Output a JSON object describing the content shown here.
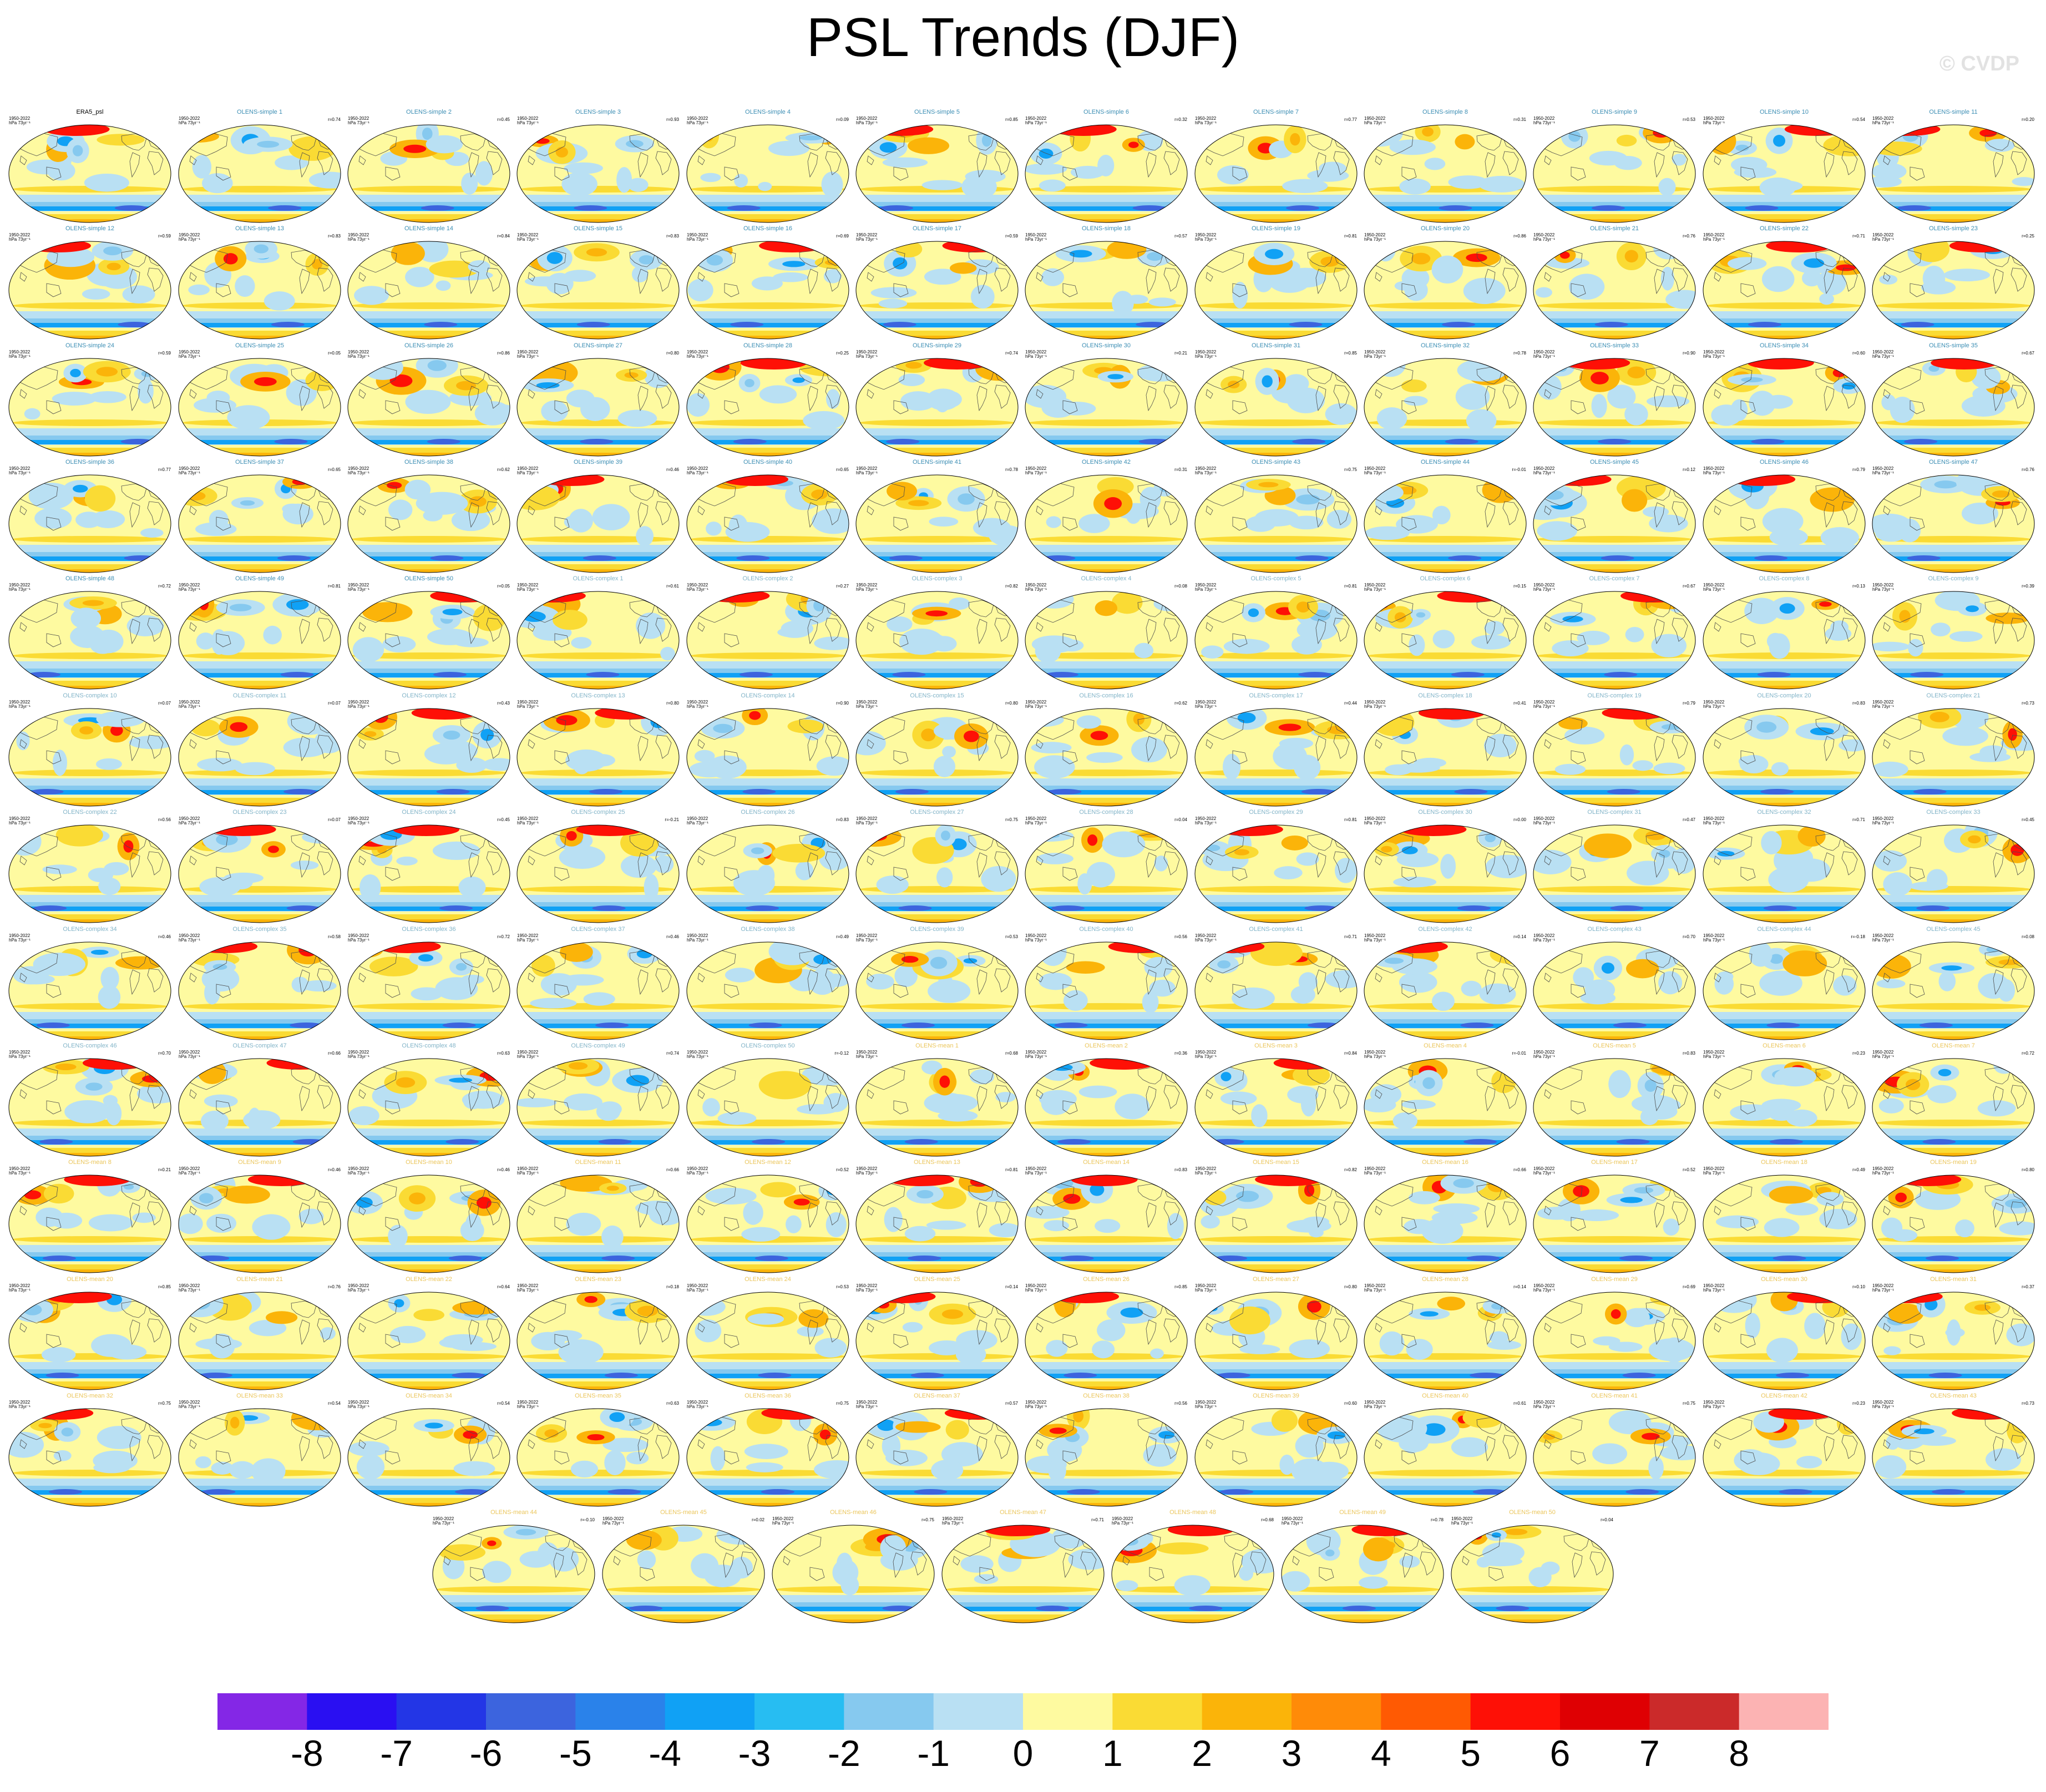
{
  "title": "PSL Trends (DJF)",
  "watermark": "© CVDP",
  "chart_data": {
    "type": "heatmap",
    "title": "PSL Trends (DJF)",
    "panel_years": "1950-2022",
    "panel_units": "hPa 73yr⁻¹",
    "colorbar": {
      "labels": [
        "-8",
        "-7",
        "-6",
        "-5",
        "-4",
        "-3",
        "-2",
        "-1",
        "0",
        "1",
        "2",
        "3",
        "4",
        "5",
        "6",
        "7",
        "8"
      ],
      "colors": [
        "#8427e6",
        "#2a0ff2",
        "#2336e6",
        "#3c64de",
        "#2a82ea",
        "#10a1f5",
        "#27bdf2",
        "#86c9ef",
        "#b9e0f3",
        "#fefaa0",
        "#fadb34",
        "#fbb409",
        "#ff8b08",
        "#ff5a03",
        "#fe1006",
        "#df0003",
        "#cb2a2a",
        "#fcb3b3"
      ]
    },
    "title_colors": {
      "obs": "#000000",
      "simple": "#3c8eb4",
      "complex": "#82b4c8",
      "mean": "#ebc65c"
    },
    "panels": [
      {
        "name": "ERA5_psl",
        "r": ""
      },
      {
        "name": "OLENS-simple 1",
        "r": "r=0.74"
      },
      {
        "name": "OLENS-simple 2",
        "r": "r=0.45"
      },
      {
        "name": "OLENS-simple 3",
        "r": "r=0.93"
      },
      {
        "name": "OLENS-simple 4",
        "r": "r=0.09"
      },
      {
        "name": "OLENS-simple 5",
        "r": "r=0.85"
      },
      {
        "name": "OLENS-simple 6",
        "r": "r=0.32"
      },
      {
        "name": "OLENS-simple 7",
        "r": "r=0.77"
      },
      {
        "name": "OLENS-simple 8",
        "r": "r=0.31"
      },
      {
        "name": "OLENS-simple 9",
        "r": "r=0.53"
      },
      {
        "name": "OLENS-simple 10",
        "r": "r=0.54"
      },
      {
        "name": "OLENS-simple 11",
        "r": "r=0.20"
      },
      {
        "name": "OLENS-simple 12",
        "r": "r=0.59"
      },
      {
        "name": "OLENS-simple 13",
        "r": "r=0.83"
      },
      {
        "name": "OLENS-simple 14",
        "r": "r=0.84"
      },
      {
        "name": "OLENS-simple 15",
        "r": "r=0.83"
      },
      {
        "name": "OLENS-simple 16",
        "r": "r=0.69"
      },
      {
        "name": "OLENS-simple 17",
        "r": "r=0.59"
      },
      {
        "name": "OLENS-simple 18",
        "r": "r=0.57"
      },
      {
        "name": "OLENS-simple 19",
        "r": "r=0.81"
      },
      {
        "name": "OLENS-simple 20",
        "r": "r=0.86"
      },
      {
        "name": "OLENS-simple 21",
        "r": "r=0.76"
      },
      {
        "name": "OLENS-simple 22",
        "r": "r=0.71"
      },
      {
        "name": "OLENS-simple 23",
        "r": "r=0.25"
      },
      {
        "name": "OLENS-simple 24",
        "r": "r=0.59"
      },
      {
        "name": "OLENS-simple 25",
        "r": "r=0.05"
      },
      {
        "name": "OLENS-simple 26",
        "r": "r=0.86"
      },
      {
        "name": "OLENS-simple 27",
        "r": "r=0.80"
      },
      {
        "name": "OLENS-simple 28",
        "r": "r=0.25"
      },
      {
        "name": "OLENS-simple 29",
        "r": "r=0.74"
      },
      {
        "name": "OLENS-simple 30",
        "r": "r=0.21"
      },
      {
        "name": "OLENS-simple 31",
        "r": "r=0.85"
      },
      {
        "name": "OLENS-simple 32",
        "r": "r=0.78"
      },
      {
        "name": "OLENS-simple 33",
        "r": "r=0.90"
      },
      {
        "name": "OLENS-simple 34",
        "r": "r=0.60"
      },
      {
        "name": "OLENS-simple 35",
        "r": "r=0.67"
      },
      {
        "name": "OLENS-simple 36",
        "r": "r=0.77"
      },
      {
        "name": "OLENS-simple 37",
        "r": "r=0.65"
      },
      {
        "name": "OLENS-simple 38",
        "r": "r=0.62"
      },
      {
        "name": "OLENS-simple 39",
        "r": "r=0.46"
      },
      {
        "name": "OLENS-simple 40",
        "r": "r=0.65"
      },
      {
        "name": "OLENS-simple 41",
        "r": "r=0.78"
      },
      {
        "name": "OLENS-simple 42",
        "r": "r=0.31"
      },
      {
        "name": "OLENS-simple 43",
        "r": "r=0.75"
      },
      {
        "name": "OLENS-simple 44",
        "r": "r=-0.01"
      },
      {
        "name": "OLENS-simple 45",
        "r": "r=0.12"
      },
      {
        "name": "OLENS-simple 46",
        "r": "r=0.79"
      },
      {
        "name": "OLENS-simple 47",
        "r": "r=0.76"
      },
      {
        "name": "OLENS-simple 48",
        "r": "r=0.72"
      },
      {
        "name": "OLENS-simple 49",
        "r": "r=0.81"
      },
      {
        "name": "OLENS-simple 50",
        "r": "r=0.05"
      },
      {
        "name": "OLENS-complex 1",
        "r": "r=0.61"
      },
      {
        "name": "OLENS-complex 2",
        "r": "r=0.27"
      },
      {
        "name": "OLENS-complex 3",
        "r": "r=0.82"
      },
      {
        "name": "OLENS-complex 4",
        "r": "r=0.08"
      },
      {
        "name": "OLENS-complex 5",
        "r": "r=0.81"
      },
      {
        "name": "OLENS-complex 6",
        "r": "r=0.15"
      },
      {
        "name": "OLENS-complex 7",
        "r": "r=0.67"
      },
      {
        "name": "OLENS-complex 8",
        "r": "r=0.13"
      },
      {
        "name": "OLENS-complex 9",
        "r": "r=0.39"
      },
      {
        "name": "OLENS-complex 10",
        "r": "r=0.07"
      },
      {
        "name": "OLENS-complex 11",
        "r": "r=0.07"
      },
      {
        "name": "OLENS-complex 12",
        "r": "r=0.43"
      },
      {
        "name": "OLENS-complex 13",
        "r": "r=0.80"
      },
      {
        "name": "OLENS-complex 14",
        "r": "r=0.90"
      },
      {
        "name": "OLENS-complex 15",
        "r": "r=0.80"
      },
      {
        "name": "OLENS-complex 16",
        "r": "r=0.62"
      },
      {
        "name": "OLENS-complex 17",
        "r": "r=0.44"
      },
      {
        "name": "OLENS-complex 18",
        "r": "r=0.41"
      },
      {
        "name": "OLENS-complex 19",
        "r": "r=0.79"
      },
      {
        "name": "OLENS-complex 20",
        "r": "r=0.83"
      },
      {
        "name": "OLENS-complex 21",
        "r": "r=0.73"
      },
      {
        "name": "OLENS-complex 22",
        "r": "r=0.56"
      },
      {
        "name": "OLENS-complex 23",
        "r": "r=0.07"
      },
      {
        "name": "OLENS-complex 24",
        "r": "r=0.45"
      },
      {
        "name": "OLENS-complex 25",
        "r": "r=-0.21"
      },
      {
        "name": "OLENS-complex 26",
        "r": "r=0.83"
      },
      {
        "name": "OLENS-complex 27",
        "r": "r=0.75"
      },
      {
        "name": "OLENS-complex 28",
        "r": "r=0.04"
      },
      {
        "name": "OLENS-complex 29",
        "r": "r=0.81"
      },
      {
        "name": "OLENS-complex 30",
        "r": "r=0.00"
      },
      {
        "name": "OLENS-complex 31",
        "r": "r=0.47"
      },
      {
        "name": "OLENS-complex 32",
        "r": "r=0.71"
      },
      {
        "name": "OLENS-complex 33",
        "r": "r=0.45"
      },
      {
        "name": "OLENS-complex 34",
        "r": "r=0.46"
      },
      {
        "name": "OLENS-complex 35",
        "r": "r=0.58"
      },
      {
        "name": "OLENS-complex 36",
        "r": "r=0.72"
      },
      {
        "name": "OLENS-complex 37",
        "r": "r=0.46"
      },
      {
        "name": "OLENS-complex 38",
        "r": "r=0.49"
      },
      {
        "name": "OLENS-complex 39",
        "r": "r=0.53"
      },
      {
        "name": "OLENS-complex 40",
        "r": "r=0.56"
      },
      {
        "name": "OLENS-complex 41",
        "r": "r=0.71"
      },
      {
        "name": "OLENS-complex 42",
        "r": "r=0.14"
      },
      {
        "name": "OLENS-complex 43",
        "r": "r=0.70"
      },
      {
        "name": "OLENS-complex 44",
        "r": "r=-0.18"
      },
      {
        "name": "OLENS-complex 45",
        "r": "r=0.08"
      },
      {
        "name": "OLENS-complex 46",
        "r": "r=0.70"
      },
      {
        "name": "OLENS-complex 47",
        "r": "r=0.66"
      },
      {
        "name": "OLENS-complex 48",
        "r": "r=0.63"
      },
      {
        "name": "OLENS-complex 49",
        "r": "r=0.74"
      },
      {
        "name": "OLENS-complex 50",
        "r": "r=-0.12"
      },
      {
        "name": "OLENS-mean 1",
        "r": "r=0.68"
      },
      {
        "name": "OLENS-mean 2",
        "r": "r=0.36"
      },
      {
        "name": "OLENS-mean 3",
        "r": "r=0.84"
      },
      {
        "name": "OLENS-mean 4",
        "r": "r=-0.01"
      },
      {
        "name": "OLENS-mean 5",
        "r": "r=0.83"
      },
      {
        "name": "OLENS-mean 6",
        "r": "r=0.23"
      },
      {
        "name": "OLENS-mean 7",
        "r": "r=0.72"
      },
      {
        "name": "OLENS-mean 8",
        "r": "r=0.21"
      },
      {
        "name": "OLENS-mean 9",
        "r": "r=0.46"
      },
      {
        "name": "OLENS-mean 10",
        "r": "r=0.46"
      },
      {
        "name": "OLENS-mean 11",
        "r": "r=0.66"
      },
      {
        "name": "OLENS-mean 12",
        "r": "r=0.52"
      },
      {
        "name": "OLENS-mean 13",
        "r": "r=0.81"
      },
      {
        "name": "OLENS-mean 14",
        "r": "r=0.83"
      },
      {
        "name": "OLENS-mean 15",
        "r": "r=0.82"
      },
      {
        "name": "OLENS-mean 16",
        "r": "r=0.66"
      },
      {
        "name": "OLENS-mean 17",
        "r": "r=0.52"
      },
      {
        "name": "OLENS-mean 18",
        "r": "r=0.49"
      },
      {
        "name": "OLENS-mean 19",
        "r": "r=0.80"
      },
      {
        "name": "OLENS-mean 20",
        "r": "r=0.85"
      },
      {
        "name": "OLENS-mean 21",
        "r": "r=0.76"
      },
      {
        "name": "OLENS-mean 22",
        "r": "r=0.64"
      },
      {
        "name": "OLENS-mean 23",
        "r": "r=0.18"
      },
      {
        "name": "OLENS-mean 24",
        "r": "r=0.53"
      },
      {
        "name": "OLENS-mean 25",
        "r": "r=0.14"
      },
      {
        "name": "OLENS-mean 26",
        "r": "r=0.85"
      },
      {
        "name": "OLENS-mean 27",
        "r": "r=0.80"
      },
      {
        "name": "OLENS-mean 28",
        "r": "r=0.14"
      },
      {
        "name": "OLENS-mean 29",
        "r": "r=0.69"
      },
      {
        "name": "OLENS-mean 30",
        "r": "r=0.10"
      },
      {
        "name": "OLENS-mean 31",
        "r": "r=0.37"
      },
      {
        "name": "OLENS-mean 32",
        "r": "r=0.75"
      },
      {
        "name": "OLENS-mean 33",
        "r": "r=0.54"
      },
      {
        "name": "OLENS-mean 34",
        "r": "r=0.54"
      },
      {
        "name": "OLENS-mean 35",
        "r": "r=0.63"
      },
      {
        "name": "OLENS-mean 36",
        "r": "r=0.75"
      },
      {
        "name": "OLENS-mean 37",
        "r": "r=0.57"
      },
      {
        "name": "OLENS-mean 38",
        "r": "r=0.56"
      },
      {
        "name": "OLENS-mean 39",
        "r": "r=0.60"
      },
      {
        "name": "OLENS-mean 40",
        "r": "r=0.61"
      },
      {
        "name": "OLENS-mean 41",
        "r": "r=0.75"
      },
      {
        "name": "OLENS-mean 42",
        "r": "r=0.23"
      },
      {
        "name": "OLENS-mean 43",
        "r": "r=0.73"
      },
      {
        "name": "OLENS-mean 44",
        "r": "r=-0.10"
      },
      {
        "name": "OLENS-mean 45",
        "r": "r=0.02"
      },
      {
        "name": "OLENS-mean 46",
        "r": "r=0.75"
      },
      {
        "name": "OLENS-mean 47",
        "r": "r=0.71"
      },
      {
        "name": "OLENS-mean 48",
        "r": "r=0.68"
      },
      {
        "name": "OLENS-mean 49",
        "r": "r=0.78"
      },
      {
        "name": "OLENS-mean 50",
        "r": "r=0.04"
      }
    ]
  }
}
